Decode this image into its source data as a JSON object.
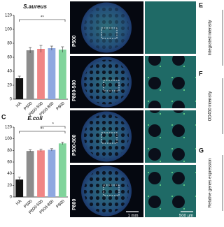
{
  "chart_data": [
    {
      "type": "bar",
      "title": "S.aureus",
      "categories": [
        "HA",
        "P500",
        "P800-500",
        "P500-800",
        "P800"
      ],
      "values": [
        30,
        70,
        72,
        73,
        71
      ],
      "errors": [
        3,
        4,
        5,
        3,
        4
      ],
      "colors": [
        "#111111",
        "#8c8c8c",
        "#f08585",
        "#8fa8e0",
        "#80d49b"
      ],
      "ylim": [
        0,
        120
      ],
      "yticks": [
        0,
        20,
        40,
        60,
        80,
        100,
        120
      ],
      "annotations": [
        "**"
      ]
    },
    {
      "type": "bar",
      "panel": "C",
      "title": "E.coli",
      "categories": [
        "HA",
        "P500",
        "P800-500",
        "P500-800",
        "P800"
      ],
      "values": [
        30,
        79,
        80,
        81,
        92
      ],
      "errors": [
        4,
        2,
        2,
        2,
        2
      ],
      "colors": [
        "#111111",
        "#8c8c8c",
        "#f08585",
        "#8fa8e0",
        "#80d49b"
      ],
      "ylim": [
        0,
        120
      ],
      "yticks": [
        0,
        20,
        40,
        60,
        80,
        100,
        120
      ],
      "annotations": [
        "**",
        "*"
      ]
    }
  ],
  "images": {
    "panel": "D",
    "rows": [
      "P500",
      "P800-500",
      "P500-800",
      "P800"
    ],
    "scale_bars": [
      "1 mm",
      "500 µm"
    ]
  },
  "right_panels": [
    {
      "label": "E",
      "axis": "Integrated intensity"
    },
    {
      "label": "F",
      "axis": "OD450 intensity"
    },
    {
      "label": "G",
      "axis": "Relative genes expression"
    }
  ]
}
